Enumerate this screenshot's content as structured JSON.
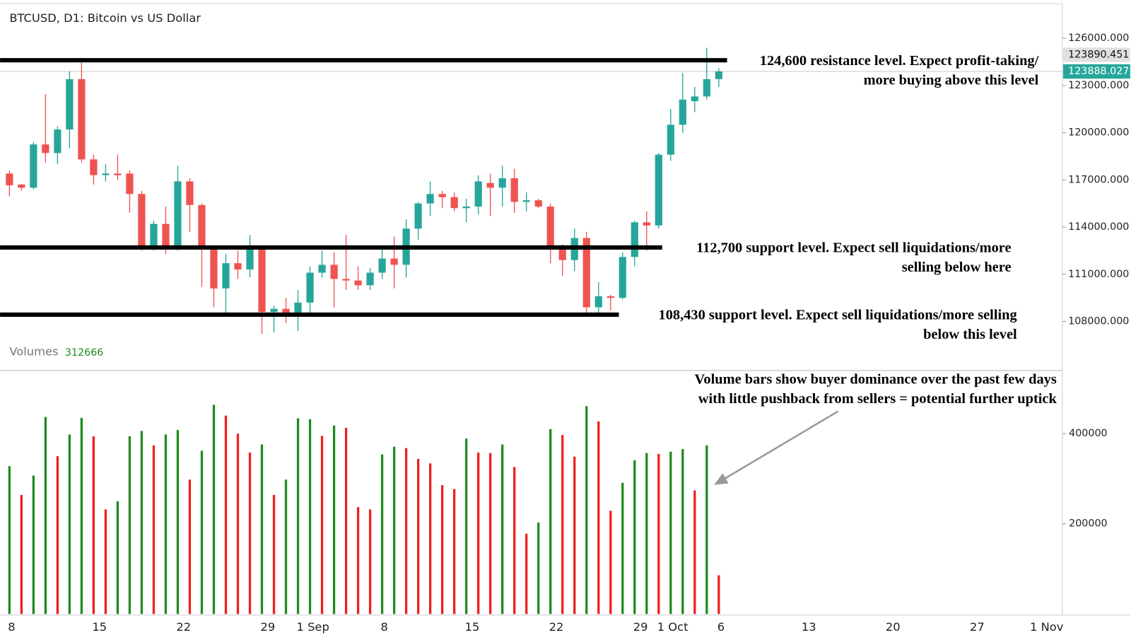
{
  "chart_data": [
    {
      "type": "candlestick",
      "title": "BTCUSD, D1: Bitcoin vs US Dollar",
      "categories": [
        "8",
        null,
        null,
        null,
        null,
        null,
        null,
        "15",
        null,
        null,
        null,
        null,
        null,
        null,
        "22",
        null,
        null,
        null,
        null,
        null,
        null,
        "29",
        null,
        null,
        "1 Sep",
        null,
        null,
        null,
        null,
        null,
        null,
        "8",
        null,
        null,
        null,
        null,
        null,
        null,
        "15",
        null,
        null,
        null,
        null,
        null,
        null,
        "22",
        null,
        null,
        null,
        null,
        null,
        null,
        "29",
        null,
        "1 Oct",
        null,
        null,
        null,
        null,
        "6",
        null,
        null,
        null,
        null,
        null,
        null,
        "13",
        null,
        null,
        null,
        null,
        null,
        null,
        "20",
        null,
        null,
        null,
        null,
        null,
        null,
        "27",
        null,
        null,
        null,
        null,
        "1 Nov",
        null,
        null
      ],
      "open": [
        117400,
        116700,
        116500,
        119250,
        118700,
        120200,
        123400,
        118300,
        117300,
        117400,
        117400,
        116100,
        112800,
        114200,
        112800,
        116900,
        115400,
        112600,
        110100,
        111700,
        111300,
        112600,
        108600,
        108800,
        108300,
        109200,
        111100,
        111600,
        110700,
        110600,
        110300,
        111100,
        112000,
        111600,
        113900,
        115500,
        116100,
        115900,
        115200,
        115300,
        116800,
        116500,
        117100,
        115600,
        115700,
        115300,
        112600,
        111900,
        113300,
        108900,
        109600,
        109500,
        112100,
        114300,
        114100,
        118600,
        120500,
        122000,
        122300,
        123400,
        null,
        null,
        null,
        null,
        null,
        null,
        null,
        null,
        null,
        null,
        null,
        null,
        null,
        null,
        null,
        null,
        null,
        null,
        null,
        null,
        null,
        null,
        null,
        null,
        null,
        null,
        null,
        null
      ],
      "high": [
        117600,
        116750,
        119400,
        122450,
        120400,
        123900,
        124450,
        118600,
        118000,
        118600,
        117600,
        116300,
        114400,
        115300,
        117900,
        117100,
        115500,
        112800,
        112300,
        112500,
        113500,
        112700,
        109000,
        109500,
        110000,
        111500,
        112500,
        112400,
        113500,
        111500,
        111400,
        112600,
        113400,
        114500,
        115600,
        116900,
        116300,
        116200,
        115800,
        117300,
        117400,
        117900,
        117700,
        116200,
        115800,
        115500,
        112900,
        113900,
        113700,
        110500,
        109700,
        112400,
        114400,
        115000,
        118700,
        121500,
        123800,
        122900,
        125400,
        124100,
        null,
        null,
        null,
        null,
        null,
        null,
        null,
        null,
        null,
        null,
        null,
        null,
        null,
        null,
        null,
        null,
        null,
        null,
        null,
        null,
        null,
        null,
        null,
        null,
        null,
        null,
        null,
        null
      ],
      "low": [
        115950,
        116300,
        116400,
        118100,
        118000,
        119000,
        118100,
        116700,
        116900,
        117000,
        114900,
        112500,
        112500,
        112300,
        112500,
        113700,
        110200,
        108900,
        108300,
        110700,
        110800,
        107200,
        107300,
        107900,
        107400,
        108500,
        110800,
        108900,
        110000,
        110000,
        110000,
        110700,
        110100,
        110800,
        113200,
        114700,
        115200,
        115000,
        114300,
        114800,
        114700,
        115300,
        114900,
        115000,
        115200,
        111700,
        110900,
        111200,
        108300,
        108400,
        108700,
        109400,
        111500,
        112500,
        113900,
        118200,
        120000,
        121300,
        122100,
        122900,
        null,
        null,
        null,
        null,
        null,
        null,
        null,
        null,
        null,
        null,
        null,
        null,
        null,
        null,
        null,
        null,
        null,
        null,
        null,
        null,
        null,
        null,
        null,
        null,
        null,
        null,
        null,
        null
      ],
      "close": [
        116650,
        116500,
        119250,
        118700,
        120200,
        123400,
        118300,
        117300,
        117400,
        117300,
        116100,
        112800,
        114200,
        112800,
        116900,
        115400,
        112600,
        110100,
        111700,
        111300,
        112600,
        108600,
        108800,
        108300,
        109200,
        111100,
        111600,
        110700,
        110600,
        110300,
        111100,
        112000,
        111600,
        113900,
        115500,
        116100,
        115900,
        115200,
        115300,
        116900,
        116500,
        117100,
        115600,
        115700,
        115300,
        112600,
        111900,
        113300,
        108900,
        109600,
        109500,
        112100,
        114300,
        114100,
        118600,
        120500,
        122100,
        122300,
        123400,
        123888,
        null,
        null,
        null,
        null,
        null,
        null,
        null,
        null,
        null,
        null,
        null,
        null,
        null,
        null,
        null,
        null,
        null,
        null,
        null,
        null,
        null,
        null,
        null,
        null,
        null,
        null,
        null,
        null
      ],
      "up_color": "#26a69a",
      "down_color": "#ef5350",
      "ylim": [
        104950,
        128200
      ],
      "yticks": [
        {
          "value": 108000,
          "label": "108000.000"
        },
        {
          "value": 111000,
          "label": "111000.000"
        },
        {
          "value": 114000,
          "label": "114000.000"
        },
        {
          "value": 117000,
          "label": "117000.000"
        },
        {
          "value": 120000,
          "label": "120000.000"
        },
        {
          "value": 123000,
          "label": "123000.000"
        },
        {
          "value": 126000,
          "label": "126000.000"
        }
      ],
      "price_markers": [
        {
          "value": 123890.451,
          "color": "#e0e0e0"
        },
        {
          "value": 123888.027,
          "color": "#26a69a"
        }
      ],
      "levels": [
        {
          "value": 124600,
          "text": [
            "124,600 resistance level. Expect profit-taking/",
            "more buying above this level"
          ]
        },
        {
          "value": 112700,
          "text": [
            "112,700 support level. Expect sell liquidations/more",
            "selling below here"
          ]
        },
        {
          "value": 108430,
          "text": [
            "108,430 support level. Expect sell liquidations/more selling",
            "below this level"
          ]
        }
      ],
      "grid": false
    },
    {
      "type": "bar",
      "title": "Volumes",
      "legend_value": 312666,
      "values": [
        328000,
        264000,
        307000,
        437000,
        350000,
        398000,
        435000,
        394000,
        232000,
        250000,
        394000,
        406000,
        374000,
        398000,
        408000,
        298000,
        362000,
        464000,
        440000,
        400000,
        358000,
        376000,
        264000,
        298000,
        434000,
        432000,
        395000,
        418000,
        413000,
        237000,
        232000,
        354000,
        371000,
        368000,
        344000,
        334000,
        286000,
        277000,
        389000,
        358000,
        357000,
        376000,
        326000,
        178000,
        203000,
        410000,
        397000,
        349000,
        461000,
        427000,
        229000,
        291000,
        341000,
        357000,
        355000,
        360000,
        366000,
        274000,
        374000,
        86000,
        null,
        null,
        null,
        null,
        null,
        null,
        null,
        null,
        null,
        null,
        null,
        null,
        null,
        null,
        null,
        null,
        null,
        null,
        null,
        null,
        null,
        null,
        null,
        null,
        null,
        null,
        null,
        null
      ],
      "bar_colors": [
        "up",
        "down",
        "up",
        "up",
        "down",
        "up",
        "up",
        "down",
        "down",
        "up",
        "up",
        "up",
        "down",
        "up",
        "up",
        "down",
        "up",
        "up",
        "down",
        "down",
        "down",
        "up",
        "down",
        "up",
        "up",
        "up",
        "down",
        "up",
        "down",
        "down",
        "down",
        "up",
        "up",
        "down",
        "down",
        "down",
        "down",
        "down",
        "up",
        "down",
        "down",
        "up",
        "down",
        "down",
        "up",
        "up",
        "down",
        "down",
        "up",
        "down",
        "down",
        "up",
        "up",
        "up",
        "down",
        "up",
        "up",
        "down",
        "up",
        "down",
        null,
        null,
        null,
        null,
        null,
        null,
        null,
        null,
        null,
        null,
        null,
        null,
        null,
        null,
        null,
        null,
        null,
        null,
        null,
        null,
        null,
        null,
        null,
        null,
        null,
        null,
        null,
        null
      ],
      "palette": {
        "up": "#1e8a1e",
        "down": "#f01e1e"
      },
      "ylim": [
        0,
        539200
      ],
      "yticks": [
        200000,
        400000
      ],
      "annotation": [
        "Volume bars show buyer dominance over the past few days",
        "with little pushback from sellers = potential further uptick"
      ],
      "grid": false
    }
  ]
}
